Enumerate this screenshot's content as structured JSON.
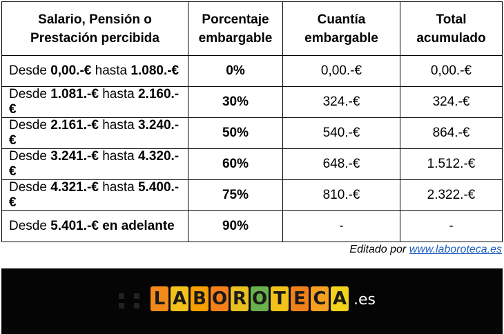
{
  "table": {
    "headers": [
      [
        "Salario, Pensión o",
        "Prestación percibida"
      ],
      [
        "Porcentaje",
        "embargable"
      ],
      [
        "Cuantía",
        "embargable"
      ],
      [
        "Total",
        "acumulado"
      ]
    ],
    "rows": [
      {
        "prefix": "Desde ",
        "from": "0,00.-€",
        "mid": " hasta ",
        "to": "1.080.-€",
        "pct": "0%",
        "amount": "0,00.-€",
        "total": "0,00.-€"
      },
      {
        "prefix": "Desde ",
        "from": "1.081.-€",
        "mid": " hasta ",
        "to": "2.160.-€",
        "pct": "30%",
        "amount": "324.-€",
        "total": "324.-€"
      },
      {
        "prefix": "Desde ",
        "from": "2.161.-€",
        "mid": " hasta ",
        "to": "3.240.-€",
        "pct": "50%",
        "amount": "540.-€",
        "total": "864.-€"
      },
      {
        "prefix": "Desde ",
        "from": "3.241.-€",
        "mid": " hasta ",
        "to": "4.320.-€",
        "pct": "60%",
        "amount": "648.-€",
        "total": "1.512.-€"
      },
      {
        "prefix": "Desde ",
        "from": "4.321.-€",
        "mid": " hasta ",
        "to": "5.400.-€",
        "pct": "75%",
        "amount": "810.-€",
        "total": "2.322.-€"
      },
      {
        "prefix": "Desde ",
        "from": "5.401.-€",
        "mid": "",
        "to": "",
        "suffix": " en adelante",
        "pct": "90%",
        "amount": "-",
        "total": "-"
      }
    ]
  },
  "credit": {
    "prefix": "Editado por ",
    "link": "www.laboroteca.es"
  },
  "banner": {
    "logo_letters": [
      "L",
      "A",
      "B",
      "O",
      "R",
      "O",
      "T",
      "E",
      "C",
      "A"
    ],
    "logo_colors": [
      "#f28a1a",
      "#f2c21a",
      "#f5a000",
      "#f5801a",
      "#e8c020",
      "#6ab04c",
      "#f2c21a",
      "#f0801a",
      "#f5a020",
      "#f2d21a"
    ],
    "tld": ".es"
  }
}
